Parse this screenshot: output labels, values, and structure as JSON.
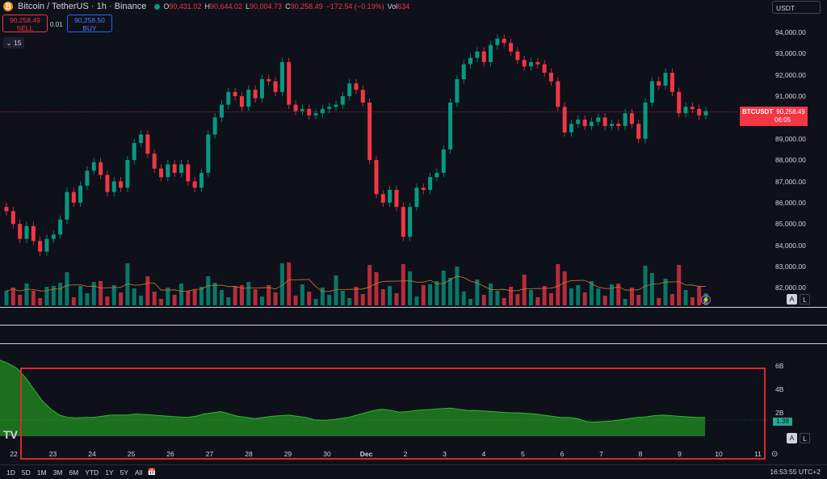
{
  "header": {
    "coin_icon": "bitcoin-icon",
    "symbol": "Bitcoin / TetherUS · 1h · Binance",
    "open_label": "O",
    "open": "90,431.02",
    "high_label": "H",
    "high": "90,644.02",
    "low_label": "L",
    "low": "90,004.73",
    "close_label": "C",
    "close": "90,258.49",
    "change": "−172.54 (−0.19%)",
    "vol_label": "Vol",
    "vol": "634"
  },
  "trade": {
    "sell_price": "90,258.49",
    "sell_label": "SELL",
    "spread": "0.01",
    "buy_price": "90,258.50",
    "buy_label": "BUY"
  },
  "interval_button": "⌄ 15",
  "currency": "USDT",
  "price_axis": [
    "94,000.00",
    "93,000.00",
    "92,000.00",
    "91,000.00",
    "89,000.00",
    "88,000.00",
    "87,000.00",
    "86,000.00",
    "85,000.00",
    "84,000.00",
    "83,000.00",
    "82,000.00"
  ],
  "price_badge": {
    "symbol": "BTCUSDT",
    "price": "90,258.49",
    "countdown": "06:05"
  },
  "volume_axis": [
    "6B",
    "4B",
    "2B"
  ],
  "volume_badge": "1.38",
  "auto_label": "A",
  "log_label": "L",
  "x_axis": [
    "22",
    "23",
    "24",
    "25",
    "26",
    "27",
    "28",
    "29",
    "30",
    "Dec",
    "2",
    "3",
    "4",
    "5",
    "6",
    "7",
    "8",
    "9",
    "10",
    "11"
  ],
  "ranges": [
    "1D",
    "5D",
    "1M",
    "3M",
    "6M",
    "YTD",
    "1Y",
    "5Y",
    "All"
  ],
  "clock": "16:53:55 UTC+2",
  "logo": "TV",
  "colors": {
    "up": "#089981",
    "down": "#f23645",
    "accent": "#2962ff",
    "highlight": "#e0262e",
    "volume": "#1e7a1e"
  },
  "chart_data": [
    {
      "type": "line",
      "series": [
        {
          "values": [
            85600,
            85000,
            84300,
            84900,
            84200,
            83700,
            84300,
            84500,
            85200,
            86500,
            86000,
            86800,
            87500,
            87900,
            87300,
            86500,
            87000,
            86700,
            88000,
            88800,
            89200,
            88300,
            87600,
            87200,
            87800,
            87400,
            87800,
            87000,
            86700,
            87400,
            89200,
            90000,
            90600,
            91200,
            91000,
            90500,
            91300,
            90900,
            91800,
            91700,
            91200,
            92600,
            90600,
            90300,
            90400,
            90100,
            90200,
            90400,
            90500,
            90600,
            91000,
            91600,
            91300,
            90700,
            88000,
            86400,
            86000,
            86600,
            85800,
            84400,
            85800,
            86700,
            86600,
            87200,
            87400,
            88500,
            90700,
            91800,
            92500,
            92800,
            93100,
            92600,
            93400,
            93700,
            93500,
            93100,
            92700,
            92400,
            92600,
            92500,
            92100,
            91700,
            90500,
            89300,
            89700,
            89900,
            89600,
            89800,
            90000,
            89600,
            89700,
            89600,
            90200,
            89700,
            89000,
            90700,
            91700,
            91500,
            92100,
            91200,
            90200,
            90500,
            90400,
            90100,
            90300
          ]
        }
      ]
    },
    {
      "type": "area",
      "values": [
        6.5,
        6.2,
        5.8,
        5.0,
        4.0,
        3.0,
        2.3,
        1.8,
        1.6,
        1.55,
        1.6,
        1.6,
        1.7,
        1.8,
        1.8,
        1.8,
        1.9,
        1.85,
        1.8,
        1.75,
        1.7,
        1.65,
        1.6,
        1.7,
        1.9,
        2.0,
        2.1,
        1.9,
        1.7,
        1.6,
        1.5,
        1.6,
        1.7,
        1.75,
        1.8,
        1.7,
        1.6,
        1.4,
        1.35,
        1.4,
        1.5,
        1.6,
        1.8,
        2.0,
        2.2,
        2.3,
        2.2,
        2.05,
        2.1,
        2.2,
        2.25,
        2.3,
        2.35,
        2.4,
        2.3,
        2.2,
        2.2,
        2.15,
        2.1,
        2.05,
        2.0,
        2.0,
        1.95,
        1.9,
        1.8,
        1.7,
        1.6,
        1.6,
        1.5,
        1.25,
        1.2,
        1.25,
        1.3,
        1.4,
        1.5,
        1.6,
        1.65,
        1.75,
        1.8,
        1.75,
        1.7,
        1.65,
        1.6,
        1.6
      ]
    }
  ]
}
